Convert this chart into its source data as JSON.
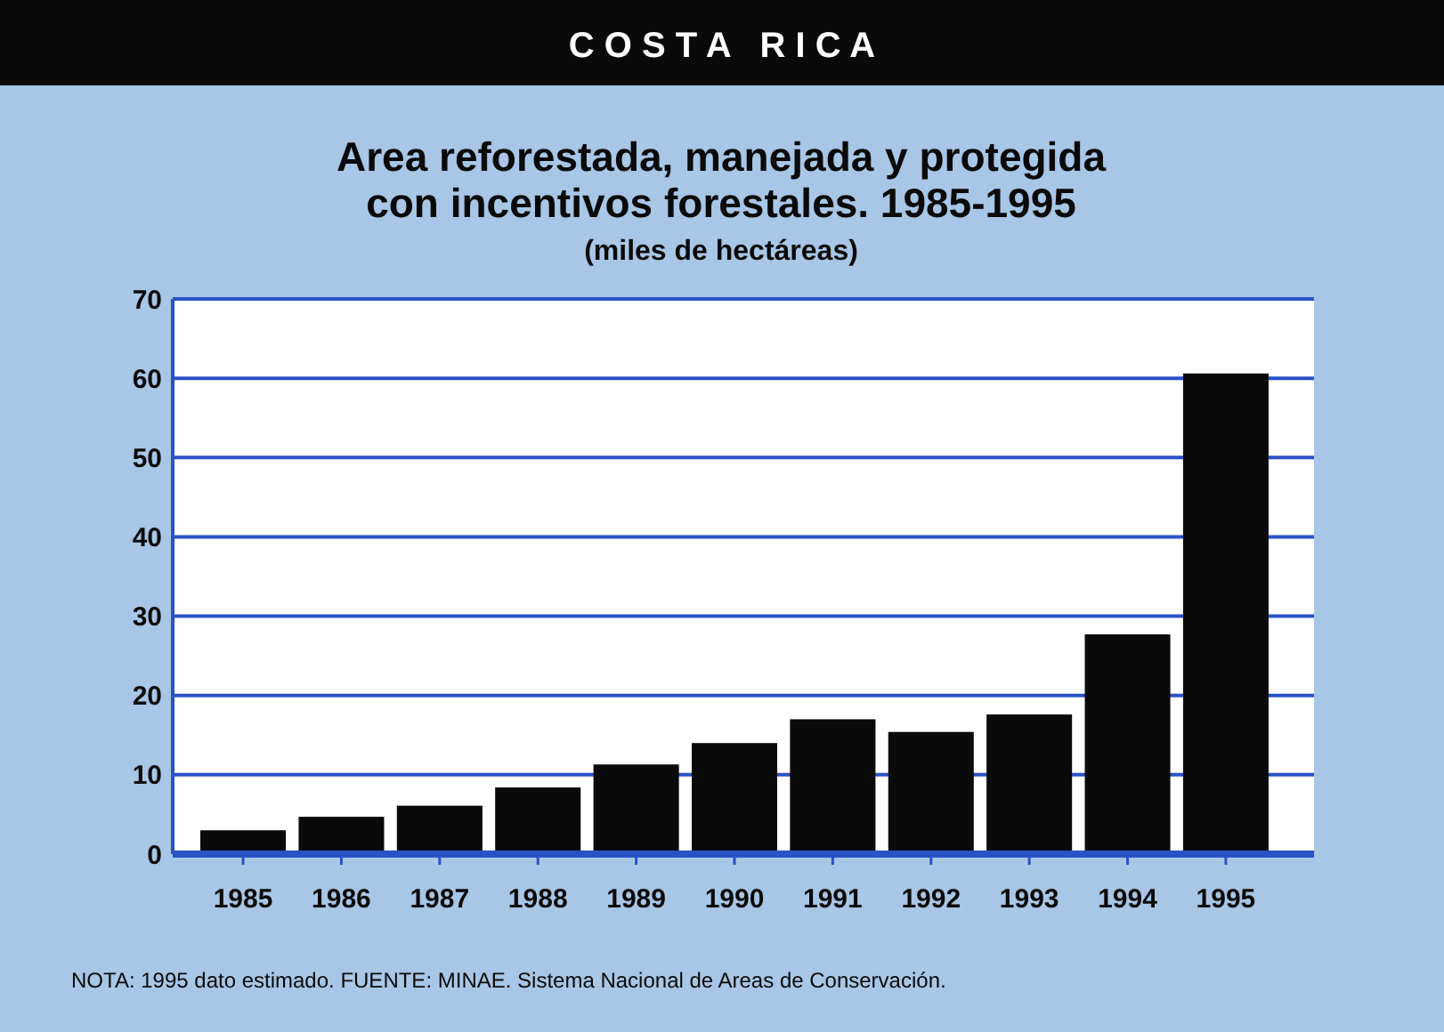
{
  "chart_data": {
    "type": "bar",
    "title": "Area reforestada, manejada y protegida\ncon incentivos forestales. 1985-1995",
    "subtitle": "(miles de hectáreas)",
    "annotations": [
      "C O S T A   R I C A",
      "NOTA: 1995 dato estimado. FUENTE: MINAE. Sistema Nacional de Areas de Conservación."
    ],
    "categories": [
      "1985",
      "1986",
      "1987",
      "1988",
      "1989",
      "1990",
      "1991",
      "1992",
      "1993",
      "1994",
      "1995"
    ],
    "values": [
      3.0,
      4.7,
      6.1,
      8.4,
      11.3,
      14.0,
      17.0,
      15.4,
      17.6,
      27.7,
      60.6
    ],
    "color": "#0a0a0a",
    "ylim": [
      0,
      70
    ],
    "yticks": [
      0,
      10,
      20,
      30,
      40,
      50,
      60,
      70
    ],
    "grid": "y"
  }
}
